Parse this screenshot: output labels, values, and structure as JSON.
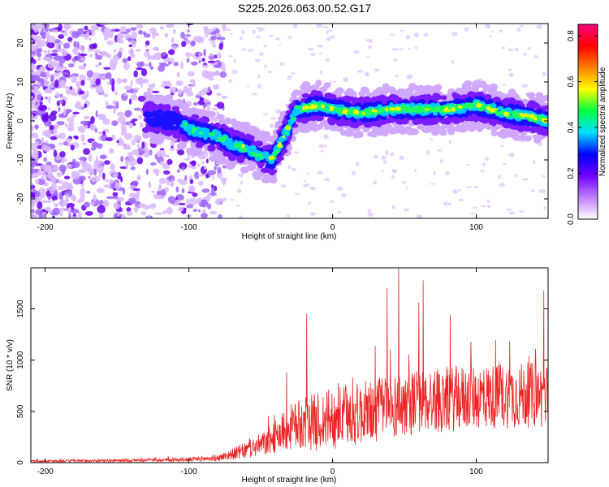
{
  "title": "S225.2026.063.00.52.G17",
  "chart_data": [
    {
      "type": "heatmap",
      "xlabel": "Height of straight line (km)",
      "ylabel": "Frequency (Hz)",
      "xlim": [
        -210,
        150
      ],
      "ylim": [
        -25,
        25
      ],
      "xticks": [
        -200,
        -100,
        0,
        100
      ],
      "yticks": [
        -20,
        -10,
        0,
        10,
        20
      ],
      "ridge": {
        "x": [
          -130,
          -110,
          -100,
          -90,
          -80,
          -70,
          -60,
          -50,
          -42,
          -35,
          -25,
          -10,
          0,
          20,
          40,
          60,
          80,
          100,
          120,
          140,
          150
        ],
        "freq": [
          1,
          0,
          -2,
          -3,
          -4,
          -6,
          -7,
          -9,
          -10,
          -5,
          3,
          4,
          3,
          2,
          3,
          3,
          3,
          4,
          2,
          1,
          0
        ]
      },
      "colorbar": {
        "label": "Normalized spectral amplitude",
        "range": [
          0,
          0.85
        ],
        "ticks": [
          "0.0",
          "0.2",
          "0.4",
          "0.6",
          "0.8"
        ],
        "colors": [
          "#ffffff",
          "#c080ff",
          "#7000ff",
          "#0000ff",
          "#00e0ff",
          "#00ff40",
          "#ffff00",
          "#ff8000",
          "#ff0000",
          "#ff0080"
        ]
      }
    },
    {
      "type": "line",
      "xlabel": "Height of straight line (km)",
      "ylabel": "SNR (10 * v/v)",
      "xlim": [
        -210,
        150
      ],
      "ylim": [
        0,
        1900
      ],
      "xticks": [
        -200,
        -100,
        0,
        100
      ],
      "yticks": [
        0,
        500,
        1000,
        1500
      ],
      "color": "#ee2222",
      "envelope": {
        "x": [
          -210,
          -150,
          -100,
          -80,
          -60,
          -45,
          -35,
          -28,
          -20,
          -10,
          0,
          20,
          40,
          60,
          80,
          100,
          120,
          140,
          150
        ],
        "mean": [
          15,
          20,
          30,
          45,
          120,
          200,
          300,
          350,
          380,
          400,
          430,
          480,
          540,
          600,
          620,
          640,
          650,
          660,
          650
        ],
        "noise": [
          10,
          14,
          20,
          30,
          80,
          130,
          190,
          230,
          260,
          290,
          300,
          310,
          320,
          320,
          320,
          320,
          320,
          320,
          320
        ]
      },
      "peaks": [
        {
          "x": -32,
          "y": 880
        },
        {
          "x": -18,
          "y": 1450
        },
        {
          "x": 38,
          "y": 1700
        },
        {
          "x": 46,
          "y": 1900
        },
        {
          "x": 60,
          "y": 1560
        },
        {
          "x": 63,
          "y": 1780
        },
        {
          "x": 147,
          "y": 1680
        }
      ]
    }
  ]
}
